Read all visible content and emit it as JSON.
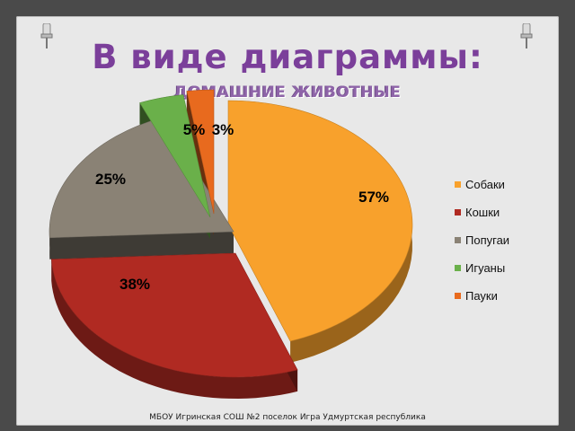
{
  "slide": {
    "heading": "В виде диаграммы:",
    "footer": "МБОУ Игринская СОШ №2 поселок Игра Удмуртская республика"
  },
  "chart_data": {
    "type": "pie",
    "title": "ДОМАШНИЕ ЖИВОТНЫЕ",
    "categories": [
      "Собаки",
      "Кошки",
      "Попугаи",
      "Игуаны",
      "Пауки"
    ],
    "values": [
      57,
      38,
      25,
      5,
      3
    ],
    "data_labels": [
      "57%",
      "38%",
      "25%",
      "5%",
      "3%"
    ],
    "colors": [
      "#f8a12c",
      "#b02a22",
      "#8a8275",
      "#6ab04a",
      "#e86a1e"
    ],
    "legend": "right",
    "exploded": true,
    "style": "3d"
  }
}
